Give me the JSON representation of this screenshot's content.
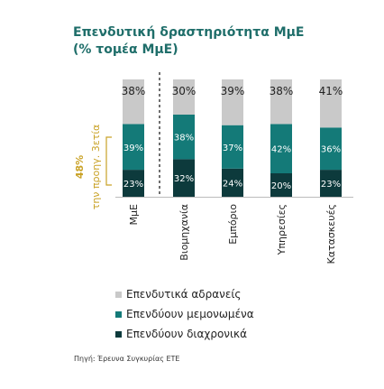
{
  "title": "Επενδυτική δραστηριότητα ΜμΕ",
  "subtitle": "(% τομέα ΜμΕ)",
  "source": "Πηγή: Έρευνα Συγκυρίας ΕΤΕ",
  "colors": {
    "inactive": "#c9c9c9",
    "reduced": "#147a78",
    "continuous": "#0d3a3c",
    "highlight": "#c9a227",
    "title": "#1f6e6a"
  },
  "side_annotation": {
    "value": "48%",
    "label": "την προηγ. 3ετία"
  },
  "legend": [
    {
      "key": "inactive",
      "label": "Επενδυτικά αδρανείς"
    },
    {
      "key": "reduced",
      "label": "Επενδύουν μεμονωμένα"
    },
    {
      "key": "continuous",
      "label": "Επενδύουν διαχρονικά"
    }
  ],
  "chart_data": {
    "type": "bar",
    "stacked": true,
    "categories": [
      "ΜμΕ",
      "Βιομηχανία",
      "Εμπόριο",
      "Υπηρεσίες",
      "Κατασκευές"
    ],
    "series": [
      {
        "name": "Επενδύουν διαχρονικά",
        "key": "continuous",
        "values": [
          23,
          32,
          24,
          20,
          23
        ]
      },
      {
        "name": "Επενδύουν μεμονωμένα",
        "key": "reduced",
        "values": [
          39,
          38,
          37,
          42,
          36
        ]
      },
      {
        "name": "Επενδυτικά αδρανείς",
        "key": "inactive",
        "values": [
          38,
          30,
          39,
          38,
          41
        ]
      }
    ],
    "ylim": [
      0,
      100
    ],
    "grid": false
  }
}
